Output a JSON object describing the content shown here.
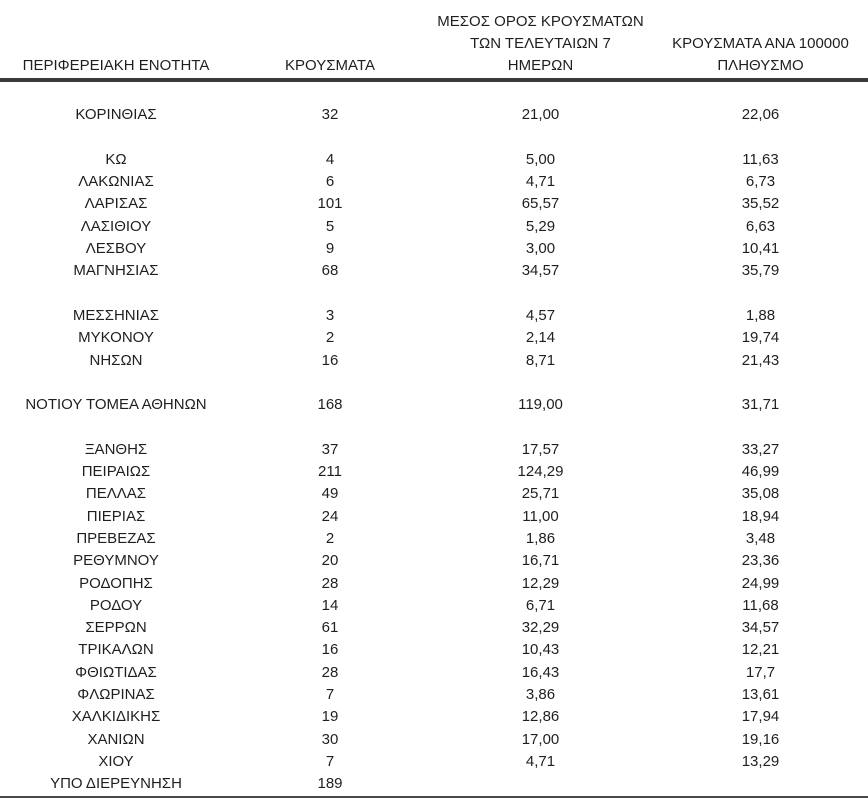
{
  "table": {
    "columns": [
      {
        "id": "region",
        "lines": [
          "ΠΕΡΙΦΕΡΕΙΑΚΗ ΕΝΟΤΗΤΑ"
        ]
      },
      {
        "id": "cases",
        "lines": [
          "ΚΡΟΥΣΜΑΤΑ"
        ]
      },
      {
        "id": "avg7",
        "lines": [
          "ΜΕΣΟΣ ΟΡΟΣ ΚΡΟΥΣΜΑΤΩΝ",
          "ΤΩΝ ΤΕΛΕΥΤΑΙΩΝ 7",
          "ΗΜΕΡΩΝ"
        ]
      },
      {
        "id": "per100k",
        "lines": [
          "ΚΡΟΥΣΜΑΤΑ ΑΝΑ 100000",
          "ΠΛΗΘΥΣΜΟ"
        ]
      }
    ],
    "sections": [
      {
        "rows": [
          [
            "ΚΟΡΙΝΘΙΑΣ",
            "32",
            "21,00",
            "22,06"
          ]
        ]
      },
      {
        "rows": [
          [
            "ΚΩ",
            "4",
            "5,00",
            "11,63"
          ],
          [
            "ΛΑΚΩΝΙΑΣ",
            "6",
            "4,71",
            "6,73"
          ],
          [
            "ΛΑΡΙΣΑΣ",
            "101",
            "65,57",
            "35,52"
          ],
          [
            "ΛΑΣΙΘΙΟΥ",
            "5",
            "5,29",
            "6,63"
          ],
          [
            "ΛΕΣΒΟΥ",
            "9",
            "3,00",
            "10,41"
          ],
          [
            "ΜΑΓΝΗΣΙΑΣ",
            "68",
            "34,57",
            "35,79"
          ]
        ]
      },
      {
        "rows": [
          [
            "ΜΕΣΣΗΝΙΑΣ",
            "3",
            "4,57",
            "1,88"
          ],
          [
            "ΜΥΚΟΝΟΥ",
            "2",
            "2,14",
            "19,74"
          ],
          [
            "ΝΗΣΩΝ",
            "16",
            "8,71",
            "21,43"
          ]
        ]
      },
      {
        "rows": [
          [
            "ΝΟΤΙΟΥ ΤΟΜΕΑ ΑΘΗΝΩΝ",
            "168",
            "119,00",
            "31,71"
          ]
        ]
      },
      {
        "rows": [
          [
            "ΞΑΝΘΗΣ",
            "37",
            "17,57",
            "33,27"
          ],
          [
            "ΠΕΙΡΑΙΩΣ",
            "211",
            "124,29",
            "46,99"
          ],
          [
            "ΠΕΛΛΑΣ",
            "49",
            "25,71",
            "35,08"
          ],
          [
            "ΠΙΕΡΙΑΣ",
            "24",
            "11,00",
            "18,94"
          ],
          [
            "ΠΡΕΒΕΖΑΣ",
            "2",
            "1,86",
            "3,48"
          ],
          [
            "ΡΕΘΥΜΝΟΥ",
            "20",
            "16,71",
            "23,36"
          ],
          [
            "ΡΟΔΟΠΗΣ",
            "28",
            "12,29",
            "24,99"
          ],
          [
            "ΡΟΔΟΥ",
            "14",
            "6,71",
            "11,68"
          ],
          [
            "ΣΕΡΡΩΝ",
            "61",
            "32,29",
            "34,57"
          ],
          [
            "ΤΡΙΚΑΛΩΝ",
            "16",
            "10,43",
            "12,21"
          ],
          [
            "ΦΘΙΩΤΙΔΑΣ",
            "28",
            "16,43",
            "17,7"
          ],
          [
            "ΦΛΩΡΙΝΑΣ",
            "7",
            "3,86",
            "13,61"
          ],
          [
            "ΧΑΛΚΙΔΙΚΗΣ",
            "19",
            "12,86",
            "17,94"
          ],
          [
            "ΧΑΝΙΩΝ",
            "30",
            "17,00",
            "19,16"
          ],
          [
            "ΧΙΟΥ",
            "7",
            "4,71",
            "13,29"
          ],
          [
            "ΥΠΟ ΔΙΕΡΕΥΝΗΣΗ",
            "189",
            "",
            ""
          ]
        ]
      }
    ]
  },
  "colors": {
    "text": "#1f1f1f",
    "header_rule": "#3a3a3a",
    "bottom_rule": "#4a4a4a"
  }
}
